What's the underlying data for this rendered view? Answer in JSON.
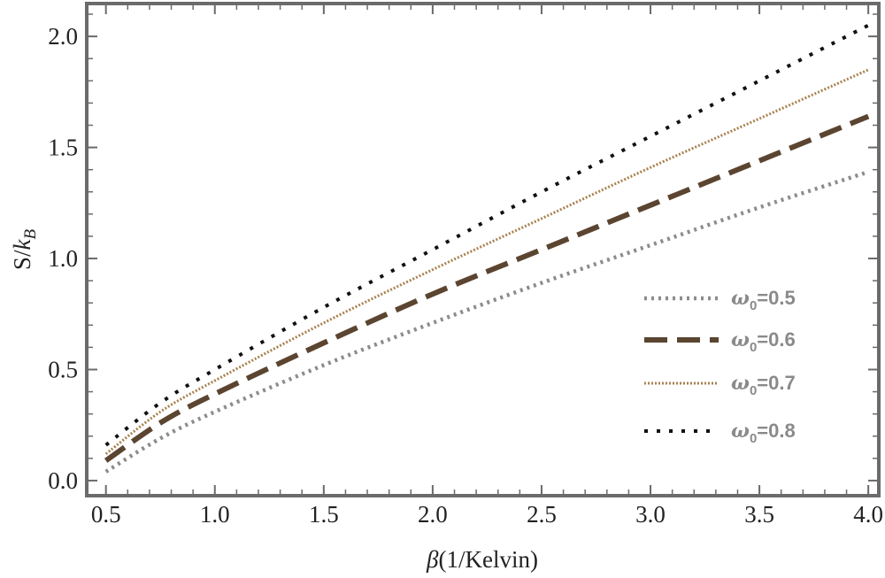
{
  "chart_data": {
    "type": "line",
    "xlabel": "β(1/Kelvin)",
    "ylabel": "S/kB",
    "xlim": [
      0.42,
      4.04
    ],
    "ylim": [
      -0.06,
      2.14
    ],
    "xticks": [
      0.5,
      1.0,
      1.5,
      2.0,
      2.5,
      3.0,
      3.5,
      4.0
    ],
    "xtick_labels": [
      "0.5",
      "1.0",
      "1.5",
      "2.0",
      "2.5",
      "3.0",
      "3.5",
      "4.0"
    ],
    "yticks": [
      0.0,
      0.5,
      1.0,
      1.5,
      2.0
    ],
    "ytick_labels": [
      "0.0",
      "0.5",
      "1.0",
      "1.5",
      "2.0"
    ],
    "grid": false,
    "legend_position": "center-right",
    "x": [
      0.5,
      0.75,
      1.0,
      1.5,
      2.0,
      2.5,
      3.0,
      3.5,
      4.0
    ],
    "series": [
      {
        "name": "ω0=0.5",
        "legend_symbol": "ω",
        "legend_sub": "0",
        "legend_value": "=0.5",
        "color": "#8c8c8c",
        "style": "dotted",
        "values": [
          0.04,
          0.19,
          0.31,
          0.52,
          0.71,
          0.89,
          1.06,
          1.23,
          1.39
        ]
      },
      {
        "name": "ω0=0.6",
        "legend_symbol": "ω",
        "legend_sub": "0",
        "legend_value": "=0.6",
        "color": "#5b4530",
        "style": "dashed",
        "values": [
          0.09,
          0.26,
          0.39,
          0.62,
          0.84,
          1.04,
          1.24,
          1.44,
          1.64
        ]
      },
      {
        "name": "ω0=0.7",
        "legend_symbol": "ω",
        "legend_sub": "0",
        "legend_value": "=0.7",
        "color": "#a88250",
        "style": "fine-dotted",
        "values": [
          0.12,
          0.31,
          0.45,
          0.71,
          0.95,
          1.18,
          1.41,
          1.63,
          1.85
        ]
      },
      {
        "name": "ω0=0.8",
        "legend_symbol": "ω",
        "legend_sub": "0",
        "legend_value": "=0.8",
        "color": "#111111",
        "style": "dotted",
        "values": [
          0.16,
          0.35,
          0.5,
          0.78,
          1.04,
          1.3,
          1.55,
          1.8,
          2.05
        ]
      }
    ]
  }
}
